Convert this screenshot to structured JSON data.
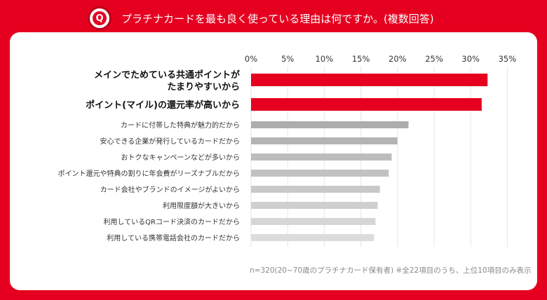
{
  "header": {
    "icon": "q-circle-icon",
    "title": "プラチナカードを最も良く使っている理由は何ですか。(複数回答)"
  },
  "colors": {
    "background": "#e50020",
    "highlight": "#e50020",
    "greys": [
      "#adadad",
      "#b4b4b4",
      "#bcbcbc",
      "#c2c2c2",
      "#c9c9c9",
      "#cfcfcf",
      "#d6d6d6",
      "#dcdcdc"
    ]
  },
  "chart_data": {
    "type": "bar",
    "orientation": "horizontal",
    "xlim": [
      0,
      35
    ],
    "grid": true,
    "ticks": [
      "0%",
      "5%",
      "10%",
      "15%",
      "20%",
      "25%",
      "30%",
      "35%"
    ],
    "categories": [
      [
        "メインでためている共通ポイントが",
        "たまりやすいから"
      ],
      [
        "ポイント(マイル)の還元率が高いから"
      ],
      [
        "カードに付帯した特典が魅力的だから"
      ],
      [
        "安心できる企業が発行しているカードだから"
      ],
      [
        "おトクなキャンペーンなどが多いから"
      ],
      [
        "ポイント還元や特典の割りに年会費がリーズナブルだから"
      ],
      [
        "カード会社やブランドのイメージがよいから"
      ],
      [
        "利用限度額が大きいから"
      ],
      [
        "利用しているQRコード決済のカードだから"
      ],
      [
        "利用している携帯電話会社のカードだから"
      ]
    ],
    "values": [
      32.3,
      31.5,
      21.5,
      20.0,
      19.2,
      18.8,
      17.6,
      17.3,
      17.0,
      16.8
    ]
  },
  "footnote": "n=320(20~70歳のプラチナカード保有者) ※全22項目のうち、上位10項目のみ表示"
}
